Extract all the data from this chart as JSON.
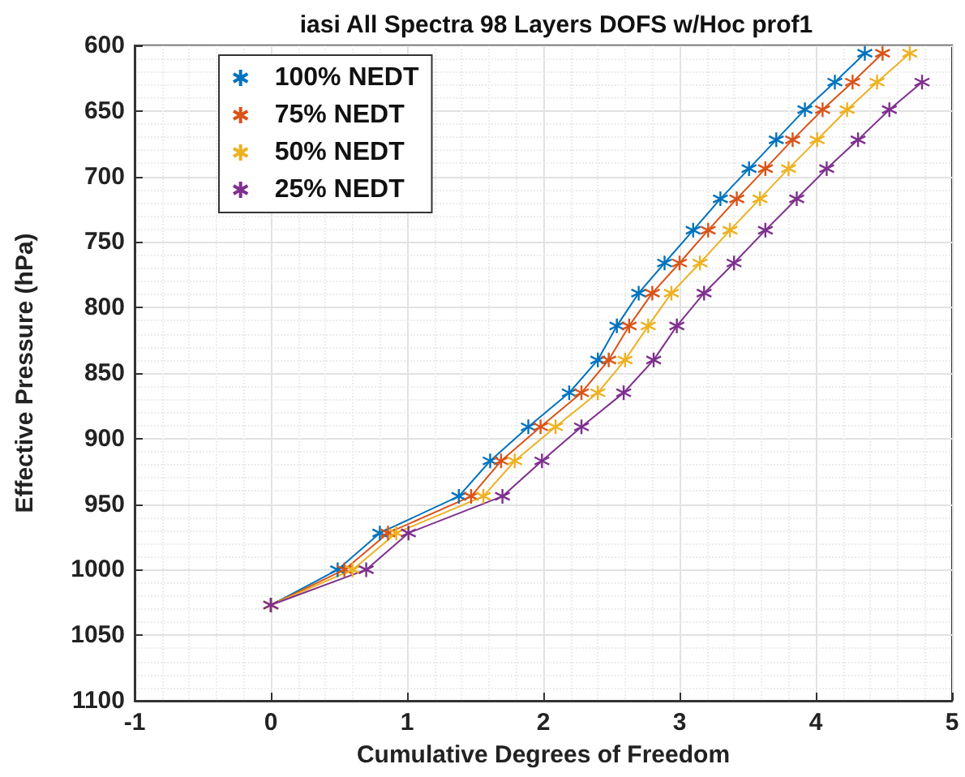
{
  "chart_data": {
    "type": "line",
    "title": "iasi All Spectra 98 Layers DOFS w/Hoc prof1",
    "xlabel": "Cumulative Degrees of Freedom",
    "ylabel": "Effective Pressure (hPa)",
    "xlim": [
      -1,
      5
    ],
    "xticks": [
      -1,
      0,
      1,
      2,
      3,
      4,
      5
    ],
    "ylim": [
      1100,
      600
    ],
    "yticks": [
      600,
      650,
      700,
      750,
      800,
      850,
      900,
      950,
      1000,
      1050,
      1100
    ],
    "grid": true,
    "legend": "top left",
    "marker": "cross",
    "line_style": "solid",
    "series": [
      {
        "name": "100% NEDT",
        "color": "#0072bd",
        "x": [
          0,
          0.49,
          0.8,
          1.38,
          1.61,
          1.89,
          2.19,
          2.4,
          2.54,
          2.7,
          2.89,
          3.1,
          3.3,
          3.51,
          3.71,
          3.92,
          4.14,
          4.36
        ],
        "values": [
          1027,
          1000,
          972,
          944,
          917,
          891,
          865,
          840,
          814,
          789,
          766,
          741,
          717,
          694,
          672,
          649,
          628,
          606
        ]
      },
      {
        "name": "75% NEDT",
        "color": "#d95319",
        "x": [
          0,
          0.54,
          0.86,
          1.47,
          1.69,
          1.98,
          2.28,
          2.48,
          2.63,
          2.8,
          3,
          3.21,
          3.42,
          3.63,
          3.83,
          4.05,
          4.27,
          4.49
        ],
        "values": [
          1027,
          1000,
          972,
          944,
          917,
          891,
          865,
          840,
          814,
          789,
          766,
          741,
          717,
          694,
          672,
          649,
          628,
          606
        ]
      },
      {
        "name": "50% NEDT",
        "color": "#edb120",
        "x": [
          0,
          0.6,
          0.92,
          1.56,
          1.79,
          2.09,
          2.4,
          2.6,
          2.77,
          2.94,
          3.15,
          3.37,
          3.59,
          3.8,
          4.01,
          4.23,
          4.45,
          4.69
        ],
        "values": [
          1027,
          1000,
          972,
          944,
          917,
          891,
          865,
          840,
          814,
          789,
          766,
          741,
          717,
          694,
          672,
          649,
          628,
          606
        ]
      },
      {
        "name": "25% NEDT",
        "color": "#7e2f8e",
        "x": [
          0,
          0.7,
          1.01,
          1.7,
          1.99,
          2.28,
          2.59,
          2.81,
          2.98,
          3.18,
          3.4,
          3.63,
          3.86,
          4.08,
          4.31,
          4.54,
          4.78
        ],
        "values": [
          1027,
          1000,
          972,
          944,
          917,
          891,
          865,
          840,
          814,
          789,
          766,
          741,
          717,
          694,
          672,
          649,
          628
        ]
      }
    ]
  }
}
